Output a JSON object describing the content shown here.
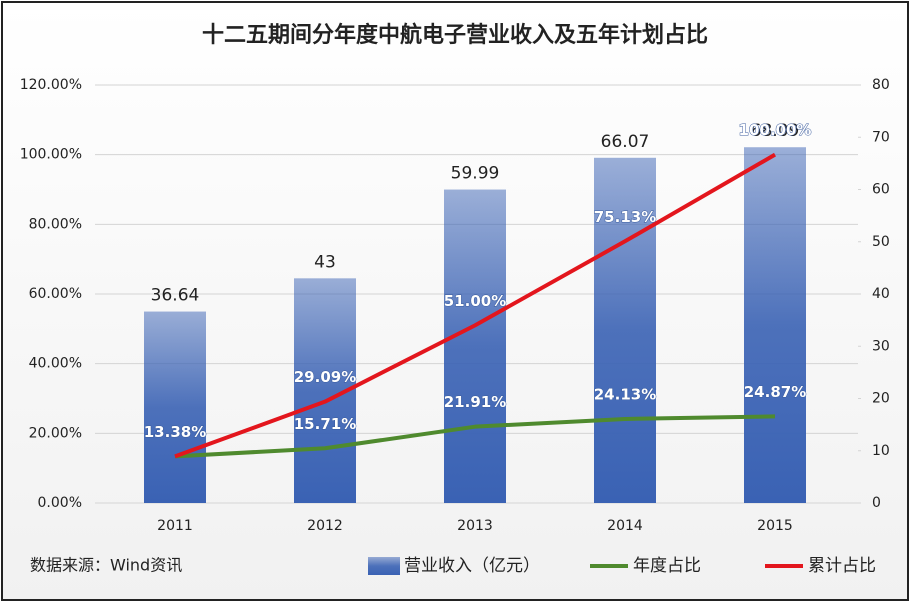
{
  "chart_data": {
    "type": "bar-line",
    "title": "十二五期间分年度中航电子营业收入及五年计划占比",
    "source": "数据来源：Wind资讯",
    "categories": [
      "2011",
      "2012",
      "2013",
      "2014",
      "2015"
    ],
    "series": [
      {
        "name": "营业收入（亿元）",
        "type": "bar",
        "axis": "y2",
        "color": "#3a62b4",
        "values": [
          36.64,
          43,
          59.99,
          66.07,
          68.09
        ]
      },
      {
        "name": "年度占比",
        "type": "line",
        "color": "#4f8a2e",
        "values": [
          13.38,
          15.71,
          21.91,
          24.13,
          24.87
        ],
        "value_labels": [
          "13.38%",
          "15.71%",
          "21.91%",
          "24.13%",
          "24.87%"
        ]
      },
      {
        "name": "累计占比",
        "type": "line",
        "color": "#e3161d",
        "values": [
          13.38,
          29.09,
          51.0,
          75.13,
          100.0
        ],
        "value_labels": [
          "13.38%",
          "29.09%",
          "51.00%",
          "75.13%",
          "100.00%"
        ]
      }
    ],
    "ylim": [
      0,
      120
    ],
    "yticks": [
      {
        "value": 0,
        "label": "0.00%"
      },
      {
        "value": 20,
        "label": "20.00%"
      },
      {
        "value": 40,
        "label": "40.00%"
      },
      {
        "value": 60,
        "label": "60.00%"
      },
      {
        "value": 80,
        "label": "80.00%"
      },
      {
        "value": 100,
        "label": "100.00%"
      },
      {
        "value": 120,
        "label": "120.00%"
      }
    ],
    "y2lim": [
      0,
      80
    ],
    "y2ticks": [
      0,
      10,
      20,
      30,
      40,
      50,
      60,
      70,
      80
    ],
    "grid": true
  }
}
